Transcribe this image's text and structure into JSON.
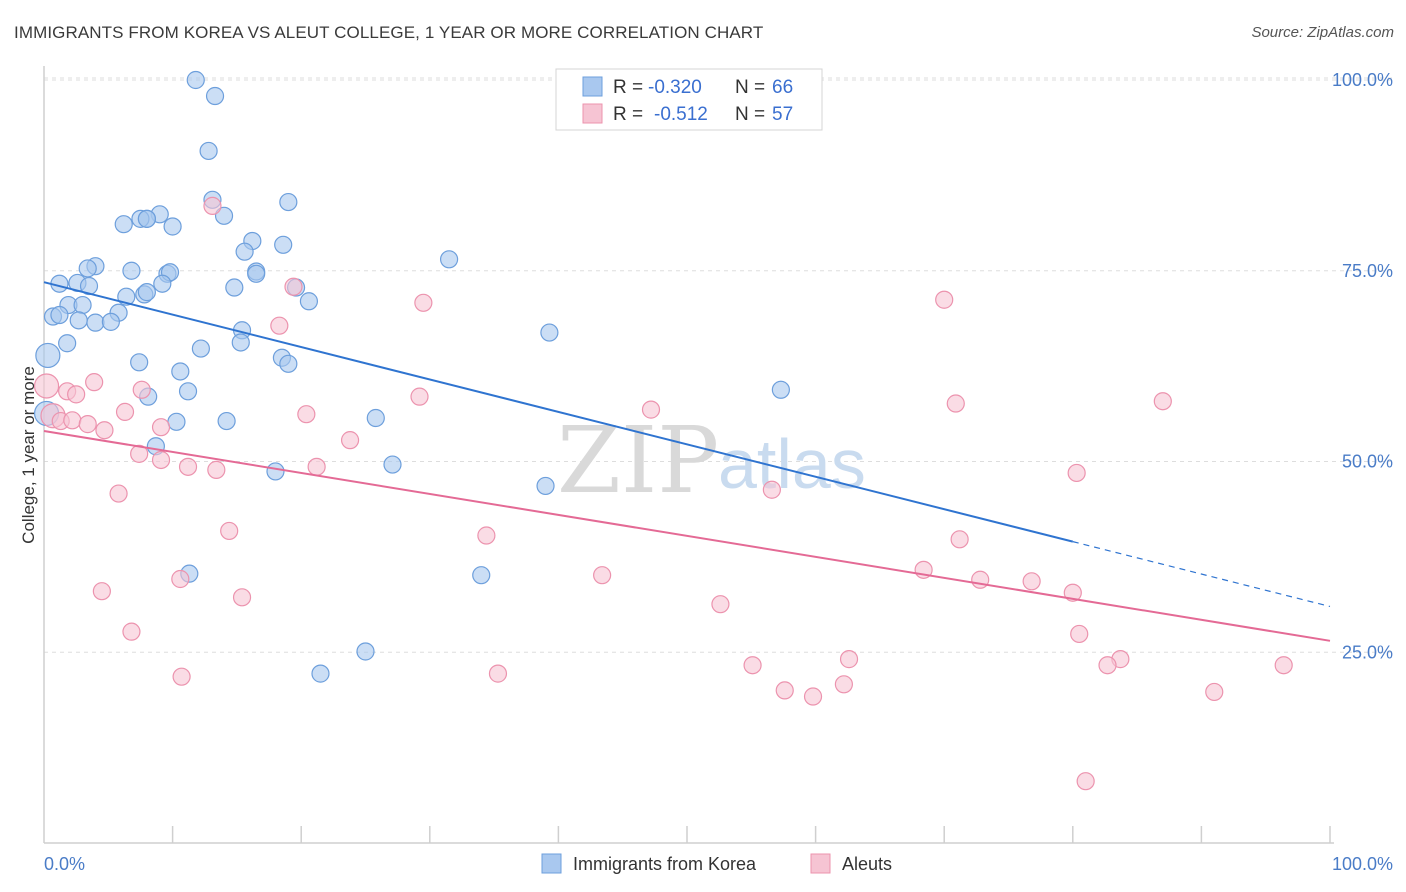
{
  "title": "IMMIGRANTS FROM KOREA VS ALEUT COLLEGE, 1 YEAR OR MORE CORRELATION CHART",
  "source": "Source: ZipAtlas.com",
  "watermark": {
    "zip": "ZIP",
    "atlas": "atlas"
  },
  "colors": {
    "blue_fill": "#a9c8ef",
    "blue_stroke": "#6d9fdc",
    "blue_line": "#2f74d0",
    "pink_fill": "#f6c4d3",
    "pink_stroke": "#ec93ae",
    "pink_line": "#e46a95",
    "grid": "#dddddd",
    "tick_label": "#4a7cc7"
  },
  "legend": {
    "rows": [
      {
        "r_label": "R =",
        "r_value": "-0.320",
        "n_label": "N =",
        "n_value": "66"
      },
      {
        "r_label": "R =",
        "r_value": "-0.512",
        "n_label": "N =",
        "n_value": "57"
      }
    ]
  },
  "bottom_legend": [
    "Immigrants from Korea",
    "Aleuts"
  ],
  "chart_data": {
    "type": "scatter",
    "title": "IMMIGRANTS FROM KOREA VS ALEUT COLLEGE, 1 YEAR OR MORE CORRELATION CHART",
    "xlabel": "",
    "ylabel": "College, 1 year or more",
    "xlim": [
      0,
      100
    ],
    "ylim": [
      0,
      102
    ],
    "x_tick_labels": [
      "0.0%",
      "100.0%"
    ],
    "y_ticks": [
      25,
      50,
      75,
      100
    ],
    "y_tick_labels": [
      "25.0%",
      "50.0%",
      "75.0%",
      "100.0%"
    ],
    "grid": "horizontal dashed",
    "legend_position": "top-center",
    "series": [
      {
        "name": "Immigrants from Korea",
        "R": -0.32,
        "N": 66,
        "trend": {
          "x0": 0,
          "y0": 73.5,
          "x1": 80,
          "y1": 39.5,
          "dash_to_x": 100,
          "dash_to_y": 31.0
        },
        "points": [
          [
            11.8,
            100.0
          ],
          [
            13.3,
            97.9
          ],
          [
            12.8,
            90.7
          ],
          [
            13.1,
            84.3
          ],
          [
            14.0,
            82.2
          ],
          [
            9.0,
            82.4
          ],
          [
            8.0,
            81.8
          ],
          [
            6.2,
            81.1
          ],
          [
            7.5,
            81.8
          ],
          [
            8.0,
            81.8
          ],
          [
            10.0,
            80.8
          ],
          [
            19.0,
            84.0
          ],
          [
            16.2,
            78.9
          ],
          [
            18.6,
            78.4
          ],
          [
            15.6,
            77.5
          ],
          [
            31.5,
            76.5
          ],
          [
            4.0,
            75.6
          ],
          [
            3.4,
            75.3
          ],
          [
            6.8,
            75.0
          ],
          [
            9.6,
            74.6
          ],
          [
            9.8,
            74.8
          ],
          [
            16.5,
            74.9
          ],
          [
            16.5,
            74.6
          ],
          [
            1.2,
            73.3
          ],
          [
            2.6,
            73.4
          ],
          [
            3.5,
            73.0
          ],
          [
            9.2,
            73.3
          ],
          [
            19.6,
            72.8
          ],
          [
            14.8,
            72.8
          ],
          [
            7.8,
            71.9
          ],
          [
            6.4,
            71.6
          ],
          [
            8.0,
            72.2
          ],
          [
            1.9,
            70.5
          ],
          [
            3.0,
            70.5
          ],
          [
            20.6,
            71.0
          ],
          [
            0.7,
            69.0
          ],
          [
            1.2,
            69.2
          ],
          [
            5.8,
            69.5
          ],
          [
            2.7,
            68.5
          ],
          [
            4.0,
            68.2
          ],
          [
            5.2,
            68.3
          ],
          [
            15.4,
            67.2
          ],
          [
            39.3,
            66.9
          ],
          [
            15.3,
            65.6
          ],
          [
            1.8,
            65.5
          ],
          [
            12.2,
            64.8
          ],
          [
            0.3,
            63.9
          ],
          [
            18.5,
            63.6
          ],
          [
            7.4,
            63.0
          ],
          [
            19.0,
            62.8
          ],
          [
            10.6,
            61.8
          ],
          [
            57.3,
            59.4
          ],
          [
            11.2,
            59.2
          ],
          [
            8.1,
            58.5
          ],
          [
            0.2,
            56.3
          ],
          [
            25.8,
            55.7
          ],
          [
            14.2,
            55.3
          ],
          [
            10.3,
            55.2
          ],
          [
            8.7,
            52.0
          ],
          [
            27.1,
            49.6
          ],
          [
            18.0,
            48.7
          ],
          [
            39.0,
            46.8
          ],
          [
            11.3,
            35.3
          ],
          [
            34.0,
            35.1
          ],
          [
            25.0,
            25.1
          ],
          [
            21.5,
            22.2
          ]
        ]
      },
      {
        "name": "Aleuts",
        "R": -0.512,
        "N": 57,
        "trend": {
          "x0": 0,
          "y0": 54.0,
          "x1": 100,
          "y1": 26.5
        },
        "points": [
          [
            13.1,
            83.5
          ],
          [
            19.4,
            72.9
          ],
          [
            29.5,
            70.8
          ],
          [
            70.0,
            71.2
          ],
          [
            18.3,
            67.8
          ],
          [
            3.9,
            60.4
          ],
          [
            0.2,
            59.9
          ],
          [
            1.8,
            59.2
          ],
          [
            7.6,
            59.4
          ],
          [
            2.5,
            58.8
          ],
          [
            29.2,
            58.5
          ],
          [
            87.0,
            57.9
          ],
          [
            70.9,
            57.6
          ],
          [
            47.2,
            56.8
          ],
          [
            0.7,
            56.0
          ],
          [
            6.3,
            56.5
          ],
          [
            20.4,
            56.2
          ],
          [
            1.3,
            55.3
          ],
          [
            2.2,
            55.4
          ],
          [
            3.4,
            54.9
          ],
          [
            9.1,
            54.5
          ],
          [
            4.7,
            54.1
          ],
          [
            23.8,
            52.8
          ],
          [
            7.4,
            51.0
          ],
          [
            9.1,
            50.2
          ],
          [
            11.2,
            49.3
          ],
          [
            21.2,
            49.3
          ],
          [
            13.4,
            48.9
          ],
          [
            80.3,
            48.5
          ],
          [
            56.6,
            46.3
          ],
          [
            5.8,
            45.8
          ],
          [
            14.4,
            40.9
          ],
          [
            34.4,
            40.3
          ],
          [
            71.2,
            39.8
          ],
          [
            68.4,
            35.8
          ],
          [
            43.4,
            35.1
          ],
          [
            10.6,
            34.6
          ],
          [
            72.8,
            34.5
          ],
          [
            76.8,
            34.3
          ],
          [
            80.0,
            32.8
          ],
          [
            4.5,
            33.0
          ],
          [
            15.4,
            32.2
          ],
          [
            52.6,
            31.3
          ],
          [
            6.8,
            27.7
          ],
          [
            80.5,
            27.4
          ],
          [
            62.6,
            24.1
          ],
          [
            83.7,
            24.1
          ],
          [
            55.1,
            23.3
          ],
          [
            96.4,
            23.3
          ],
          [
            82.7,
            23.3
          ],
          [
            35.3,
            22.2
          ],
          [
            10.7,
            21.8
          ],
          [
            62.2,
            20.8
          ],
          [
            57.6,
            20.0
          ],
          [
            59.8,
            19.2
          ],
          [
            91.0,
            19.8
          ],
          [
            81.0,
            8.1
          ]
        ]
      }
    ]
  }
}
